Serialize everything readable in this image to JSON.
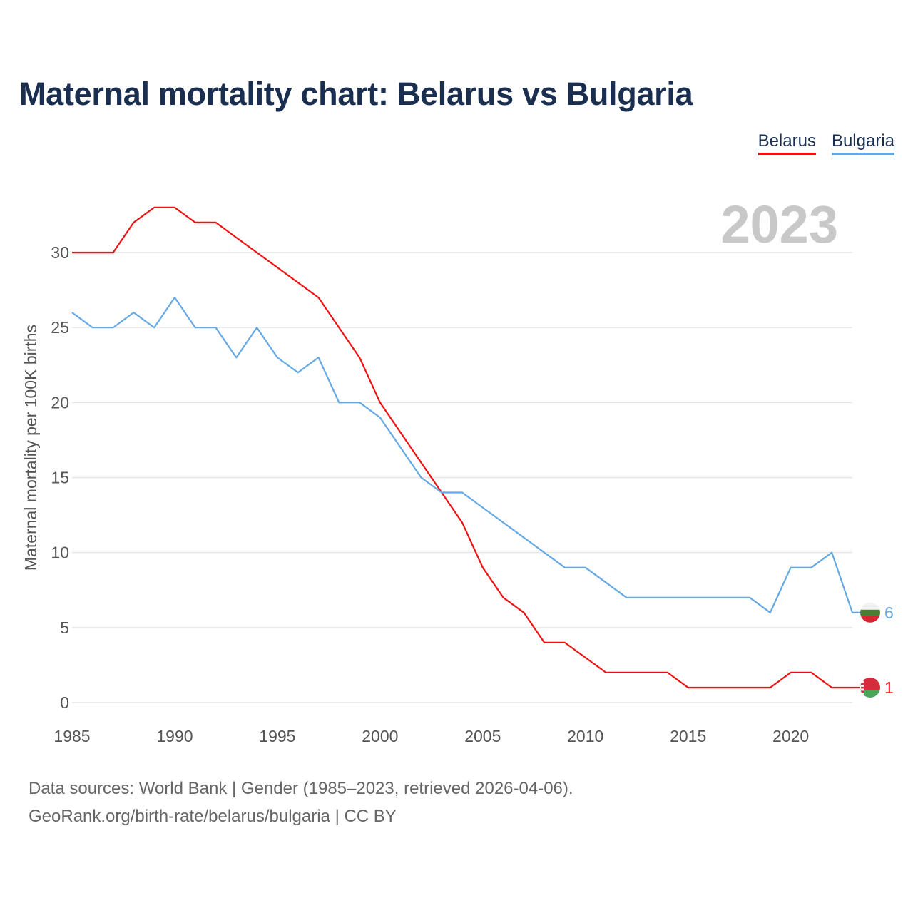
{
  "title": "Maternal mortality chart: Belarus vs Bulgaria",
  "legend": [
    {
      "name": "Belarus",
      "color": "#ee1111"
    },
    {
      "name": "Bulgaria",
      "color": "#64a8e6"
    }
  ],
  "footer": {
    "line1": "Data sources: World Bank | Gender (1985–2023, retrieved 2026-04-06).",
    "line2": "GeoRank.org/birth-rate/belarus/bulgaria | CC BY"
  },
  "chart_data": {
    "type": "line",
    "title": "Maternal mortality chart: Belarus vs Bulgaria",
    "xlabel": "",
    "ylabel": "Maternal mortality per 100K births",
    "year_display": "2023",
    "x": [
      1985,
      1986,
      1987,
      1988,
      1989,
      1990,
      1991,
      1992,
      1993,
      1994,
      1995,
      1996,
      1997,
      1998,
      1999,
      2000,
      2001,
      2002,
      2003,
      2004,
      2005,
      2006,
      2007,
      2008,
      2009,
      2010,
      2011,
      2012,
      2013,
      2014,
      2015,
      2016,
      2017,
      2018,
      2019,
      2020,
      2021,
      2022,
      2023
    ],
    "xlim": [
      1985,
      2023
    ],
    "ylim": [
      0,
      31
    ],
    "x_ticks": [
      1985,
      1990,
      1995,
      2000,
      2005,
      2010,
      2015,
      2020
    ],
    "y_ticks": [
      0,
      5,
      10,
      15,
      20,
      25,
      30
    ],
    "grid": true,
    "legend_position": "top-right",
    "series": [
      {
        "name": "Belarus",
        "color": "#ee1111",
        "end_label": "1",
        "values": [
          30,
          30,
          30,
          32,
          33,
          33,
          32,
          32,
          31,
          30,
          29,
          28,
          27,
          25,
          23,
          20,
          18,
          16,
          14,
          12,
          9,
          7,
          6,
          4,
          4,
          3,
          2,
          2,
          2,
          2,
          1,
          1,
          1,
          1,
          1,
          2,
          2,
          1,
          1
        ]
      },
      {
        "name": "Bulgaria",
        "color": "#64a8e6",
        "end_label": "6",
        "values": [
          26,
          25,
          25,
          26,
          25,
          27,
          25,
          25,
          23,
          25,
          23,
          22,
          23,
          20,
          20,
          19,
          17,
          15,
          14,
          14,
          13,
          12,
          11,
          10,
          9,
          9,
          8,
          7,
          7,
          7,
          7,
          7,
          7,
          7,
          6,
          9,
          9,
          10,
          6
        ]
      }
    ]
  }
}
